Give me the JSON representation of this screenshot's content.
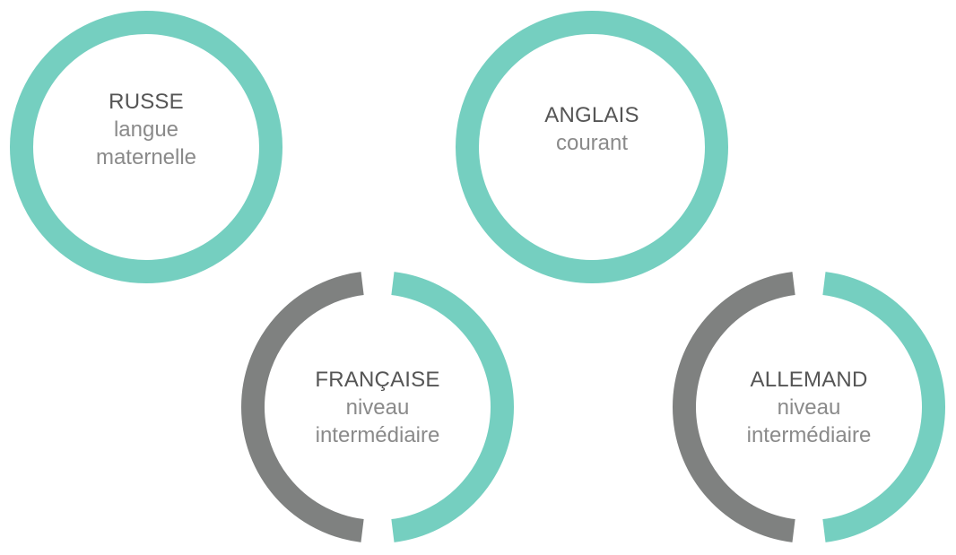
{
  "colors": {
    "accent": "#75cfc0",
    "track": "#7f8180",
    "name_text": "#555555",
    "level_text": "#8a8a8a"
  },
  "languages": [
    {
      "name": "RUSSE",
      "level": "langue maternelle",
      "proficiency": 1.0
    },
    {
      "name": "ANGLAIS",
      "level": "courant",
      "proficiency": 1.0
    },
    {
      "name": "FRANÇAISE",
      "level": "niveau intermédiaire",
      "proficiency": 0.5
    },
    {
      "name": "ALLEMAND",
      "level": "niveau intermédiaire",
      "proficiency": 0.5
    }
  ]
}
